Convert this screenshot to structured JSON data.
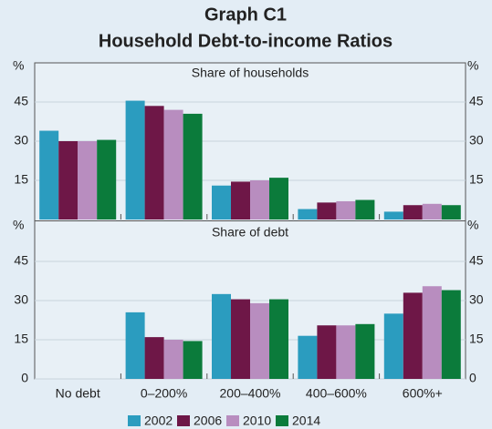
{
  "title": "Graph C1",
  "subtitle": "Household Debt-to-income Ratios",
  "chart_data": [
    {
      "type": "bar",
      "title": "Share of households",
      "y_unit": "%",
      "ylim": [
        0,
        60
      ],
      "yticks": [
        15,
        30,
        45
      ],
      "series": [
        {
          "name": "2002",
          "color": "#2b9cbf",
          "values": [
            34,
            45.5,
            13,
            4,
            3
          ]
        },
        {
          "name": "2006",
          "color": "#6e1747",
          "values": [
            30,
            43.5,
            14.5,
            6.5,
            5.5
          ]
        },
        {
          "name": "2010",
          "color": "#b88dbf",
          "values": [
            30,
            42,
            15,
            7,
            6
          ]
        },
        {
          "name": "2014",
          "color": "#0b7b3b",
          "values": [
            30.5,
            40.5,
            16,
            7.5,
            5.5
          ]
        }
      ]
    },
    {
      "type": "bar",
      "title": "Share of debt",
      "y_unit": "%",
      "ylim": [
        0,
        60
      ],
      "yticks": [
        0,
        15,
        30,
        45
      ],
      "categories": [
        "No debt",
        "0–200%",
        "200–400%",
        "400–600%",
        "600%+"
      ],
      "series": [
        {
          "color": "#2b9cbf",
          "values": [
            0,
            25.5,
            32.5,
            16.5,
            25
          ]
        },
        {
          "color": "#6e1747",
          "values": [
            0,
            16,
            30.5,
            20.5,
            33
          ]
        },
        {
          "color": "#b88dbf",
          "values": [
            0,
            15,
            29,
            20.5,
            35.5
          ]
        },
        {
          "color": "#0b7b3b",
          "values": [
            0,
            14.5,
            30.5,
            21,
            34
          ]
        }
      ]
    }
  ]
}
